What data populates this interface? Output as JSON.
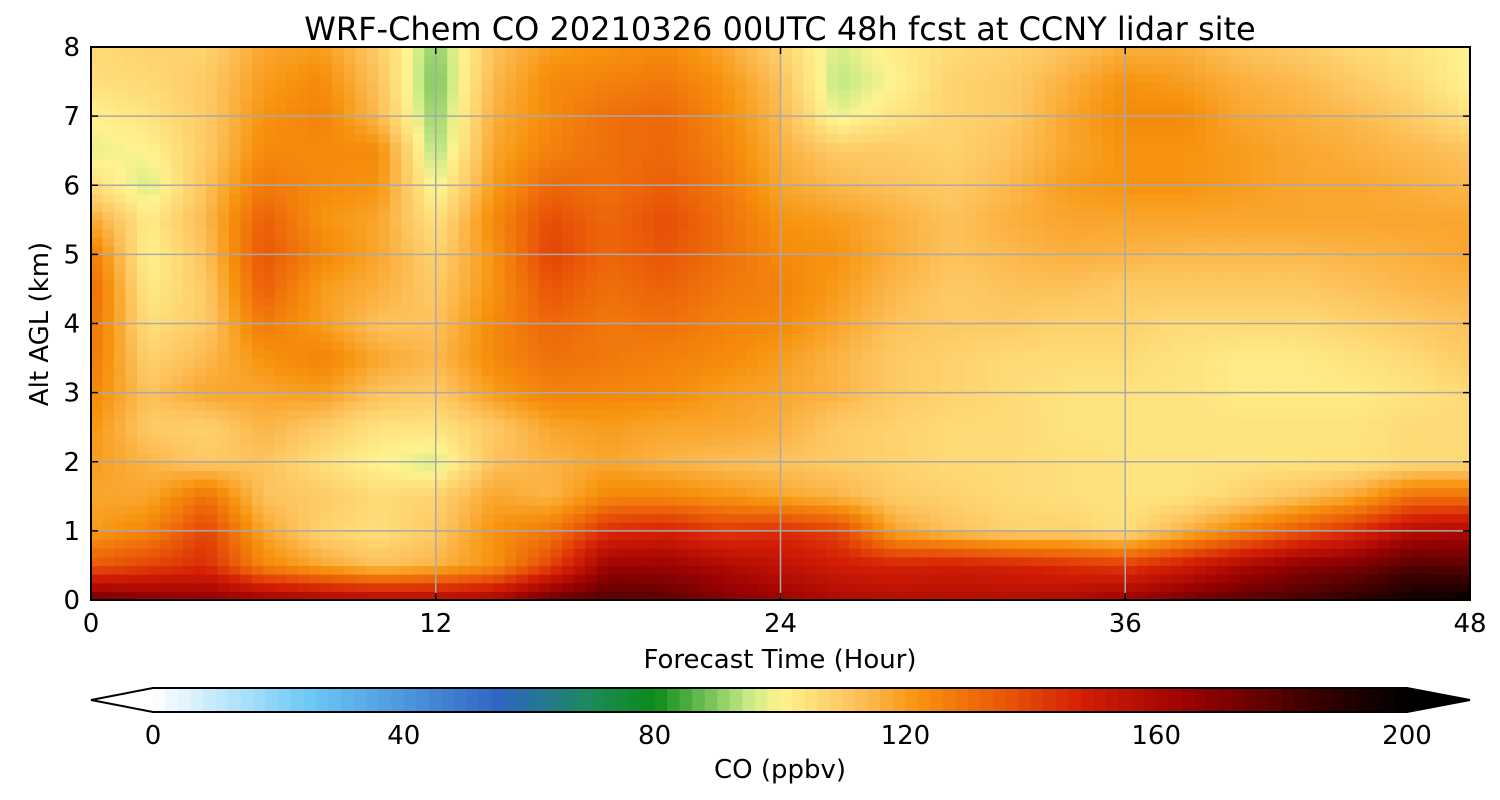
{
  "chart_data": {
    "type": "heatmap",
    "title": "WRF-Chem CO  20210326 00UTC 48h fcst at CCNY lidar site",
    "xlabel": "Forecast Time (Hour)",
    "ylabel": "Alt AGL (km)",
    "xlim": [
      0,
      48
    ],
    "ylim": [
      0,
      8
    ],
    "xticks": [
      0,
      12,
      24,
      36,
      48
    ],
    "yticks": [
      0,
      1,
      2,
      3,
      4,
      5,
      6,
      7,
      8
    ],
    "grid": true,
    "colorbar": {
      "label": "CO  (ppbv)",
      "ticks": [
        0,
        40,
        80,
        120,
        160,
        200
      ],
      "range": [
        0,
        200
      ],
      "extend": "both",
      "colors": [
        {
          "v": 0,
          "c": "#ffffff"
        },
        {
          "v": 25,
          "c": "#6cc8f5"
        },
        {
          "v": 55,
          "c": "#2f66c4"
        },
        {
          "v": 70,
          "c": "#1c8a5a"
        },
        {
          "v": 80,
          "c": "#0a8c18"
        },
        {
          "v": 95,
          "c": "#c7ea86"
        },
        {
          "v": 100,
          "c": "#fff38f"
        },
        {
          "v": 112,
          "c": "#fdc25c"
        },
        {
          "v": 122,
          "c": "#f7930e"
        },
        {
          "v": 135,
          "c": "#ea5a08"
        },
        {
          "v": 148,
          "c": "#d51f05"
        },
        {
          "v": 165,
          "c": "#9c0202"
        },
        {
          "v": 185,
          "c": "#3a0000"
        },
        {
          "v": 200,
          "c": "#000000"
        }
      ]
    },
    "x": [
      0,
      2,
      4,
      6,
      8,
      10,
      12,
      14,
      16,
      18,
      20,
      22,
      24,
      26,
      28,
      30,
      32,
      34,
      36,
      38,
      40,
      42,
      44,
      46,
      48
    ],
    "y": [
      0,
      0.5,
      1,
      1.5,
      2,
      2.5,
      3,
      3.5,
      4,
      4.5,
      5,
      5.5,
      6,
      6.5,
      7,
      7.5,
      8
    ],
    "z": [
      [
        175,
        170,
        168,
        165,
        162,
        160,
        160,
        162,
        175,
        180,
        178,
        170,
        165,
        160,
        158,
        158,
        158,
        160,
        165,
        172,
        178,
        182,
        188,
        196,
        198
      ],
      [
        135,
        140,
        145,
        125,
        118,
        112,
        115,
        122,
        140,
        165,
        165,
        160,
        155,
        150,
        148,
        150,
        148,
        145,
        142,
        150,
        160,
        168,
        172,
        180,
        178
      ],
      [
        120,
        125,
        140,
        118,
        108,
        105,
        110,
        122,
        128,
        145,
        148,
        142,
        145,
        140,
        118,
        112,
        108,
        108,
        105,
        115,
        125,
        135,
        145,
        158,
        160
      ],
      [
        118,
        118,
        130,
        112,
        110,
        106,
        108,
        118,
        115,
        125,
        125,
        122,
        118,
        115,
        110,
        108,
        106,
        105,
        104,
        104,
        108,
        112,
        118,
        130,
        130
      ],
      [
        120,
        115,
        110,
        112,
        105,
        100,
        96,
        112,
        115,
        118,
        115,
        113,
        112,
        110,
        108,
        106,
        106,
        105,
        104,
        104,
        104,
        104,
        104,
        106,
        106
      ],
      [
        122,
        110,
        108,
        115,
        110,
        104,
        104,
        110,
        118,
        120,
        118,
        118,
        116,
        110,
        108,
        106,
        106,
        104,
        104,
        104,
        104,
        104,
        104,
        106,
        106
      ],
      [
        125,
        112,
        118,
        118,
        120,
        112,
        110,
        120,
        126,
        125,
        124,
        120,
        118,
        115,
        110,
        108,
        106,
        104,
        104,
        104,
        102,
        102,
        102,
        104,
        106
      ],
      [
        128,
        108,
        114,
        122,
        126,
        118,
        114,
        124,
        130,
        128,
        126,
        124,
        120,
        115,
        110,
        108,
        106,
        106,
        106,
        104,
        102,
        102,
        104,
        106,
        110
      ],
      [
        130,
        105,
        110,
        128,
        120,
        112,
        112,
        124,
        132,
        128,
        130,
        126,
        124,
        118,
        112,
        110,
        110,
        108,
        108,
        106,
        106,
        106,
        108,
        110,
        112
      ],
      [
        132,
        102,
        110,
        134,
        120,
        116,
        110,
        122,
        136,
        130,
        133,
        128,
        126,
        120,
        114,
        110,
        112,
        112,
        110,
        110,
        110,
        110,
        112,
        114,
        115
      ],
      [
        128,
        100,
        112,
        136,
        125,
        118,
        108,
        122,
        140,
        132,
        136,
        130,
        124,
        122,
        116,
        112,
        114,
        116,
        115,
        114,
        114,
        114,
        115,
        116,
        118
      ],
      [
        118,
        102,
        114,
        134,
        122,
        118,
        104,
        124,
        138,
        132,
        138,
        130,
        122,
        120,
        116,
        112,
        116,
        118,
        118,
        118,
        118,
        118,
        118,
        118,
        118
      ],
      [
        105,
        96,
        112,
        128,
        124,
        122,
        98,
        120,
        132,
        130,
        134,
        128,
        118,
        114,
        112,
        110,
        114,
        120,
        122,
        122,
        120,
        118,
        118,
        116,
        114
      ],
      [
        98,
        100,
        110,
        124,
        124,
        124,
        92,
        118,
        126,
        130,
        132,
        126,
        116,
        110,
        110,
        108,
        112,
        118,
        122,
        122,
        120,
        118,
        116,
        114,
        112
      ],
      [
        100,
        104,
        110,
        122,
        126,
        114,
        90,
        116,
        124,
        130,
        132,
        124,
        114,
        98,
        104,
        108,
        110,
        118,
        124,
        124,
        118,
        116,
        114,
        110,
        104
      ],
      [
        105,
        106,
        110,
        120,
        124,
        112,
        88,
        114,
        124,
        126,
        128,
        122,
        112,
        94,
        100,
        108,
        110,
        116,
        122,
        120,
        116,
        114,
        110,
        106,
        100
      ],
      [
        106,
        108,
        108,
        118,
        120,
        110,
        90,
        112,
        120,
        122,
        124,
        118,
        108,
        96,
        102,
        106,
        108,
        112,
        116,
        116,
        112,
        110,
        106,
        104,
        100
      ]
    ]
  }
}
